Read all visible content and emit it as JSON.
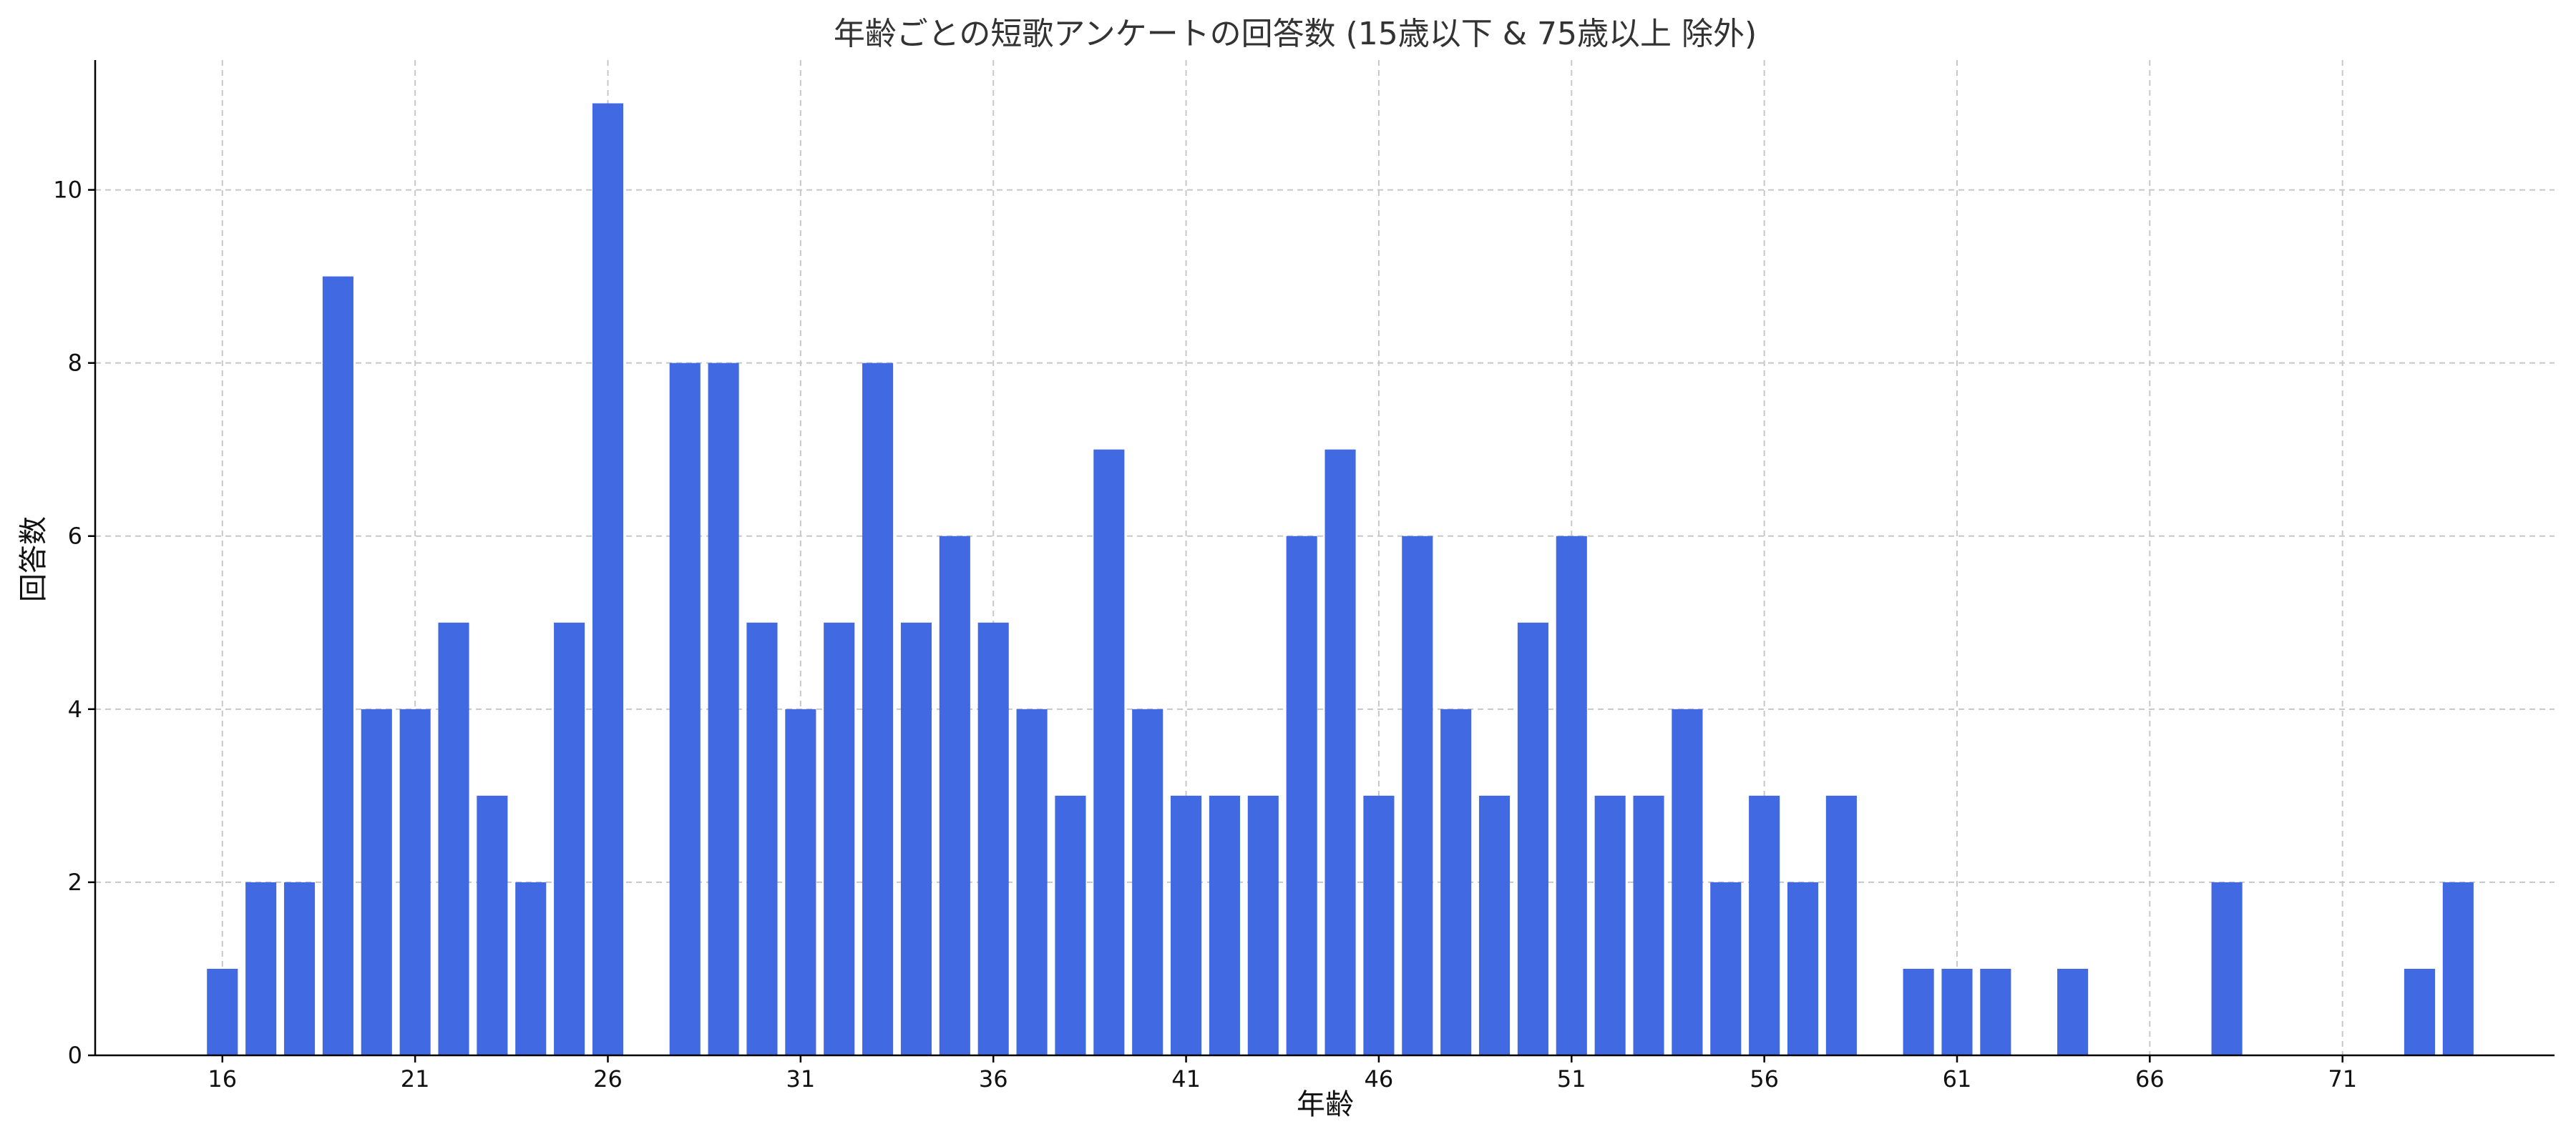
{
  "chart_data": {
    "type": "bar",
    "title": "年齢ごとの短歌アンケートの回答数 (15歳以下 & 75歳以上 除外)",
    "xlabel": "年齢",
    "ylabel": "回答数",
    "xlim": [
      12.7,
      76.5
    ],
    "ylim": [
      0,
      11.5
    ],
    "x_ticks": [
      16,
      21,
      26,
      31,
      36,
      41,
      46,
      51,
      56,
      61,
      66,
      71
    ],
    "y_ticks": [
      0,
      2,
      4,
      6,
      8,
      10
    ],
    "grid": true,
    "bar_color": "#4169e1",
    "x": [
      16,
      17,
      18,
      19,
      20,
      21,
      22,
      23,
      24,
      25,
      26,
      28,
      29,
      30,
      31,
      32,
      33,
      34,
      35,
      36,
      37,
      38,
      39,
      40,
      41,
      42,
      43,
      44,
      45,
      46,
      47,
      48,
      49,
      50,
      51,
      52,
      53,
      54,
      55,
      56,
      57,
      58,
      60,
      61,
      62,
      64,
      68,
      73,
      74
    ],
    "values": [
      1,
      2,
      2,
      9,
      4,
      4,
      5,
      3,
      2,
      5,
      11,
      8,
      8,
      5,
      4,
      5,
      8,
      5,
      6,
      5,
      4,
      3,
      7,
      4,
      3,
      3,
      3,
      6,
      7,
      3,
      6,
      4,
      3,
      5,
      6,
      3,
      3,
      4,
      2,
      3,
      2,
      3,
      1,
      1,
      1,
      1,
      2,
      1,
      2
    ]
  }
}
